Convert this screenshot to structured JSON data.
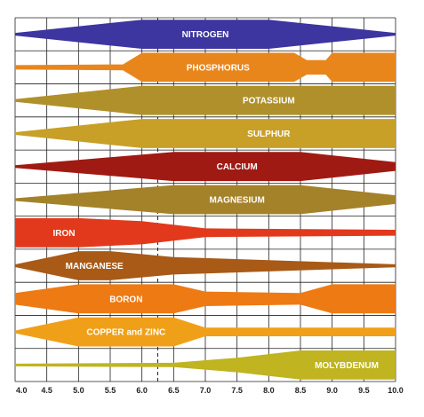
{
  "chart_data": {
    "type": "area",
    "title": "",
    "xlabel": "",
    "ylabel": "",
    "xlim": [
      4.0,
      10.0
    ],
    "x_ticks": [
      "4.0",
      "4.5",
      "5.0",
      "5.5",
      "6.0",
      "6.5",
      "7.0",
      "7.5",
      "8.0",
      "8.5",
      "9.0",
      "9.5",
      "10.0"
    ],
    "reference_line_x": 6.25,
    "grid": true,
    "series": [
      {
        "name": "NITROGEN",
        "color": "#3d35a0",
        "x": [
          4.0,
          6.0,
          8.0,
          10.0
        ],
        "thickness": [
          0.05,
          1.0,
          1.0,
          0.05
        ]
      },
      {
        "name": "PHOSPHORUS",
        "color": "#e8861c",
        "x": [
          4.0,
          5.7,
          6.0,
          7.5,
          8.4,
          8.6,
          8.9,
          9.0,
          10.0
        ],
        "thickness": [
          0.15,
          0.2,
          1.0,
          1.0,
          1.0,
          0.5,
          0.5,
          1.0,
          1.0
        ]
      },
      {
        "name": "POTASSIUM",
        "color": "#b0902a",
        "x": [
          4.0,
          6.0,
          10.0
        ],
        "thickness": [
          0.05,
          1.0,
          1.0
        ]
      },
      {
        "name": "SULPHUR",
        "color": "#c8a028",
        "x": [
          4.0,
          6.0,
          10.0
        ],
        "thickness": [
          0.05,
          1.0,
          1.0
        ]
      },
      {
        "name": "CALCIUM",
        "color": "#a01a14",
        "x": [
          4.0,
          6.5,
          8.5,
          10.0
        ],
        "thickness": [
          0.05,
          1.0,
          1.0,
          0.3
        ]
      },
      {
        "name": "MAGNESIUM",
        "color": "#a4822a",
        "x": [
          4.0,
          6.5,
          8.5,
          10.0
        ],
        "thickness": [
          0.05,
          1.0,
          1.0,
          0.3
        ]
      },
      {
        "name": "IRON",
        "color": "#e2391c",
        "x": [
          4.0,
          5.0,
          6.0,
          7.0,
          10.0
        ],
        "thickness": [
          1.0,
          1.0,
          0.8,
          0.3,
          0.2
        ]
      },
      {
        "name": "MANGANESE",
        "color": "#a85a16",
        "x": [
          4.0,
          5.0,
          5.5,
          6.5,
          10.0
        ],
        "thickness": [
          0.05,
          1.0,
          1.0,
          0.6,
          0.1
        ]
      },
      {
        "name": "BORON",
        "color": "#ee7a14",
        "x": [
          4.0,
          5.0,
          6.5,
          7.0,
          8.5,
          9.0,
          10.0
        ],
        "thickness": [
          0.4,
          1.0,
          1.0,
          0.5,
          0.4,
          1.0,
          1.0
        ]
      },
      {
        "name": "COPPER and ZINC",
        "color": "#f0a018",
        "x": [
          4.0,
          5.0,
          6.5,
          7.0,
          10.0
        ],
        "thickness": [
          0.05,
          1.0,
          1.0,
          0.3,
          0.3
        ]
      },
      {
        "name": "MOLYBDENUM",
        "color": "#c0b420",
        "x": [
          4.0,
          6.5,
          7.5,
          8.5,
          10.0
        ],
        "thickness": [
          0.05,
          0.15,
          0.5,
          1.0,
          1.0
        ]
      }
    ]
  }
}
